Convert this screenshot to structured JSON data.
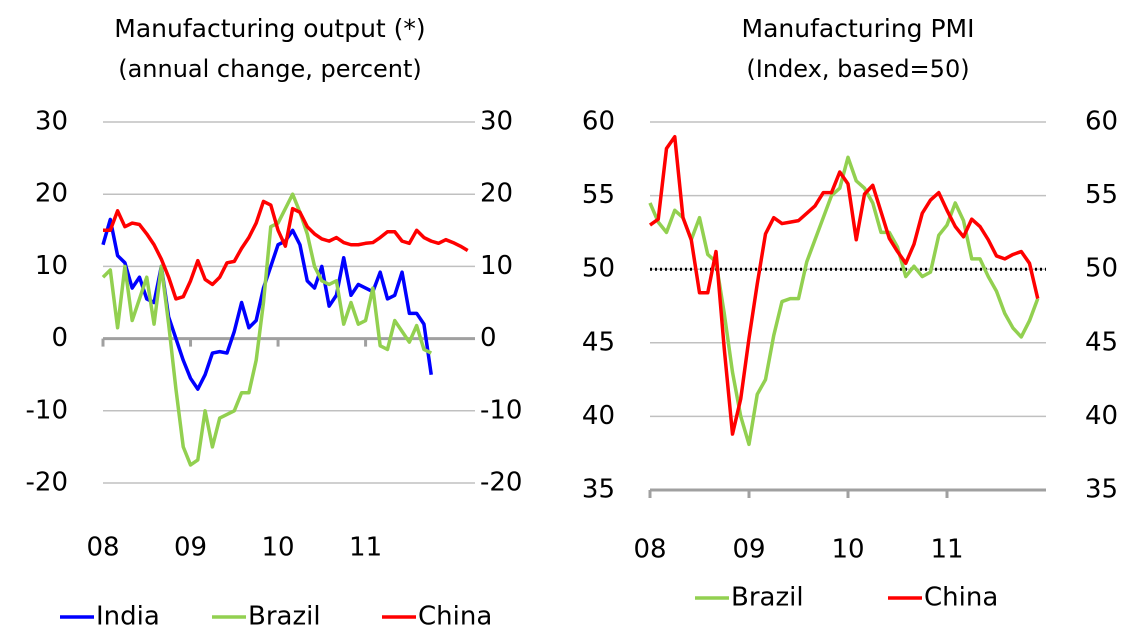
{
  "chart_data": [
    {
      "type": "line",
      "title": "Manufacturing output (*)",
      "subtitle": "(annual change, percent)",
      "x": [
        0,
        1,
        2,
        3,
        4,
        5,
        6,
        7,
        8,
        9,
        10,
        11,
        12,
        13,
        14,
        15,
        16,
        17,
        18,
        19,
        20,
        21,
        22,
        23,
        24,
        25,
        26,
        27,
        28,
        29,
        30,
        31,
        32,
        33,
        34,
        35,
        36,
        37,
        38,
        39,
        40,
        41,
        42,
        43,
        44,
        45,
        46,
        47,
        48,
        49,
        50
      ],
      "xlim": [
        0,
        51
      ],
      "xticks": [
        {
          "value": 0,
          "label": "08"
        },
        {
          "value": 12,
          "label": "09"
        },
        {
          "value": 24,
          "label": "10"
        },
        {
          "value": 36,
          "label": "11"
        }
      ],
      "ylim": [
        -20,
        30
      ],
      "yticks": [
        -20,
        -10,
        0,
        10,
        20,
        30
      ],
      "y2lim": [
        -20,
        30
      ],
      "y2ticks": [
        -20,
        -10,
        0,
        10,
        20,
        30
      ],
      "grid": true,
      "legend": "bottom",
      "series": [
        {
          "name": "India",
          "color": "#0000ff",
          "values": [
            13,
            16.5,
            11.5,
            10.5,
            7,
            8.5,
            5.5,
            5,
            10,
            3,
            0,
            -3,
            -5.5,
            -7,
            -5,
            -2,
            -1.8,
            -2,
            1,
            5,
            1.5,
            2.5,
            7,
            10,
            13,
            13.5,
            15,
            13,
            8,
            7,
            10,
            4.5,
            6,
            11.2,
            6,
            7.5,
            7,
            6.5,
            9.2,
            5.5,
            6,
            9.2,
            3.5,
            3.5,
            2,
            -5,
            null,
            null,
            null,
            null,
            null
          ]
        },
        {
          "name": "Brazil",
          "color": "#92d050",
          "values": [
            8.5,
            9.5,
            1.5,
            10,
            2.5,
            5.5,
            8.5,
            2,
            10,
            2,
            -7,
            -15,
            -17.5,
            -16.8,
            -10,
            -15,
            -11,
            -10.5,
            -10,
            -7.5,
            -7.5,
            -3,
            5,
            15.5,
            16,
            18,
            20,
            17.5,
            14.5,
            10,
            8,
            7.5,
            8,
            2,
            5,
            2,
            2.5,
            7,
            -1,
            -1.5,
            2.5,
            1,
            -0.5,
            1.8,
            -1.5,
            -2,
            null,
            null,
            null,
            null,
            null
          ]
        },
        {
          "name": "China",
          "color": "#ff0000",
          "values": [
            15,
            15,
            17.7,
            15.5,
            16,
            15.8,
            14.5,
            13,
            11,
            8.5,
            5.5,
            5.8,
            8,
            10.8,
            8.2,
            7.5,
            8.5,
            10.5,
            10.7,
            12.5,
            14,
            16,
            19,
            18.5,
            15,
            12.8,
            18,
            17.5,
            15.5,
            14.5,
            13.8,
            13.5,
            14,
            13.3,
            13,
            13,
            13.2,
            13.3,
            14,
            14.8,
            14.8,
            13.5,
            13.2,
            15,
            14,
            13.5,
            13.2,
            13.7,
            13.3,
            12.8,
            12.2
          ]
        }
      ]
    },
    {
      "type": "line",
      "title": "Manufacturing PMI",
      "subtitle": "(Index, based=50)",
      "x": [
        0,
        1,
        2,
        3,
        4,
        5,
        6,
        7,
        8,
        9,
        10,
        11,
        12,
        13,
        14,
        15,
        16,
        17,
        18,
        19,
        20,
        21,
        22,
        23,
        24,
        25,
        26,
        27,
        28,
        29,
        30,
        31,
        32,
        33,
        34,
        35,
        36,
        37,
        38,
        39,
        40,
        41,
        42,
        43,
        44,
        45,
        46,
        47
      ],
      "xlim": [
        0,
        48
      ],
      "xticks": [
        {
          "value": 0,
          "label": "08"
        },
        {
          "value": 12,
          "label": "09"
        },
        {
          "value": 24,
          "label": "10"
        },
        {
          "value": 36,
          "label": "11"
        }
      ],
      "ylim": [
        35,
        60
      ],
      "yticks": [
        35,
        40,
        45,
        50,
        55,
        60
      ],
      "y2lim": [
        35,
        60
      ],
      "y2ticks": [
        35,
        40,
        45,
        50,
        55,
        60
      ],
      "grid": true,
      "legend": "bottom",
      "hline": 50,
      "series": [
        {
          "name": "Brazil",
          "color": "#92d050",
          "values": [
            54.5,
            53.2,
            52.5,
            54,
            53.5,
            52,
            53.5,
            51,
            50.5,
            47,
            43,
            40,
            38.1,
            41.5,
            42.5,
            45.5,
            47.8,
            48,
            48,
            50.5,
            52,
            53.5,
            55,
            55.5,
            57.6,
            56,
            55.5,
            54.5,
            52.5,
            52.5,
            51.5,
            49.5,
            50.2,
            49.5,
            49.8,
            52.3,
            53,
            54.5,
            53.3,
            50.7,
            50.7,
            49.5,
            48.5,
            47,
            46,
            45.4,
            46.5,
            48
          ]
        },
        {
          "name": "China",
          "color": "#ff0000",
          "values": [
            53,
            53.4,
            58.2,
            59,
            53.5,
            52,
            48.4,
            48.4,
            51.2,
            44.6,
            38.8,
            41.2,
            45.3,
            49,
            52.4,
            53.5,
            53.1,
            53.2,
            53.3,
            53.8,
            54.3,
            55.2,
            55.2,
            56.6,
            55.8,
            52,
            55.1,
            55.7,
            53.9,
            52.1,
            51.2,
            50.4,
            51.7,
            53.8,
            54.7,
            55.2,
            54,
            52.9,
            52.2,
            53.4,
            52.9,
            52,
            50.9,
            50.7,
            51,
            51.2,
            50.4,
            48
          ]
        }
      ]
    }
  ]
}
